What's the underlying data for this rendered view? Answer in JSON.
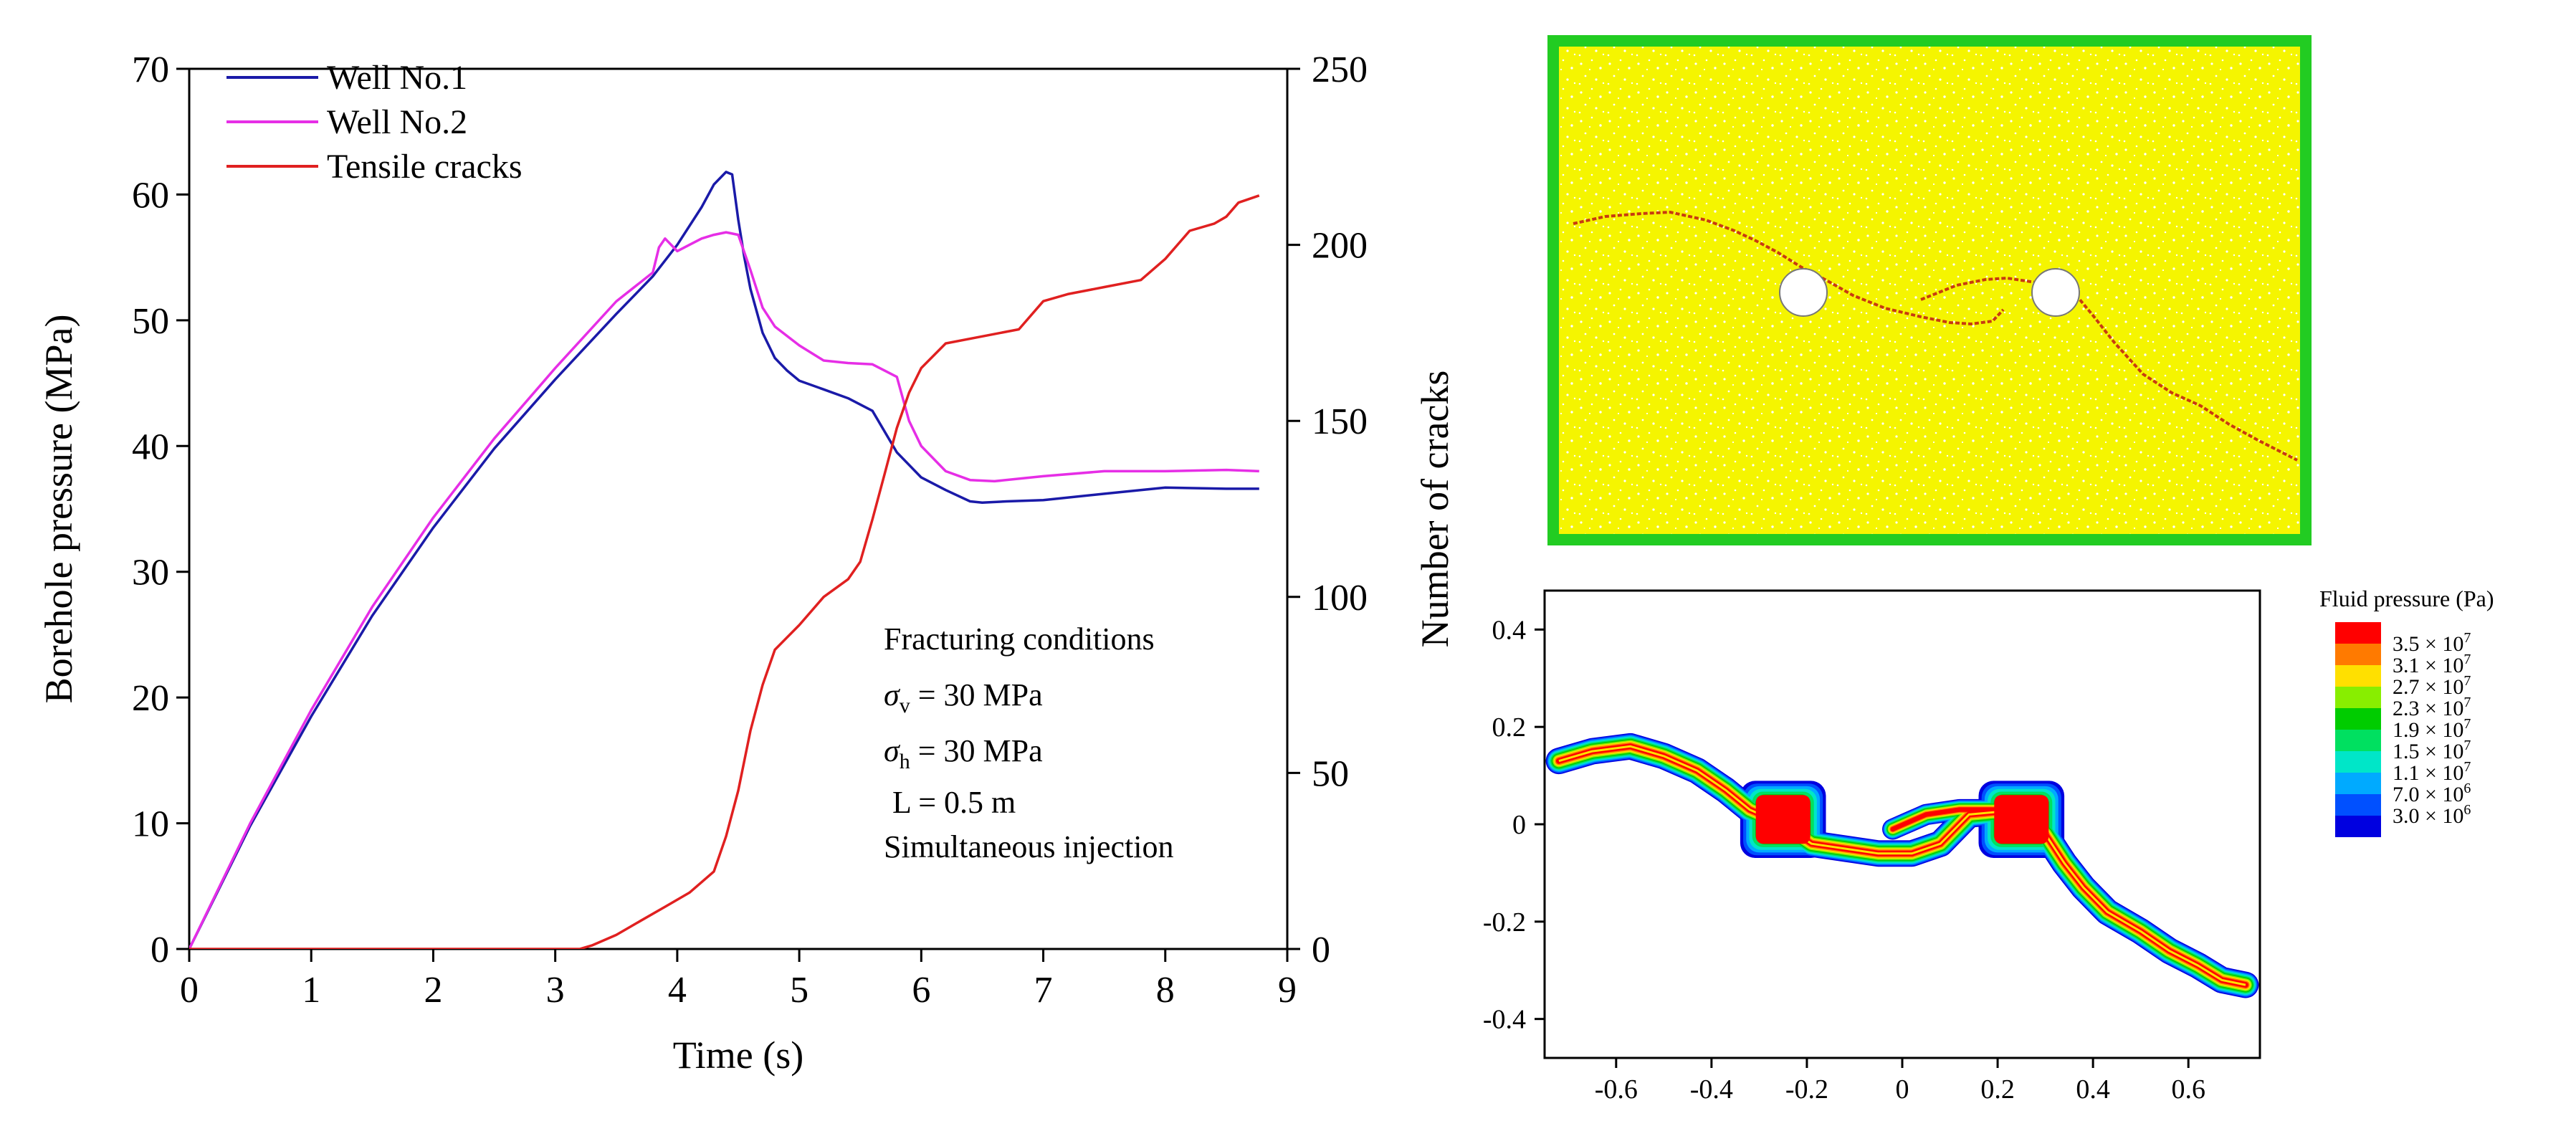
{
  "colors": {
    "well1": "#1a1aa8",
    "well2": "#e62ee6",
    "cracks": "#e02020",
    "specimen": "#f5f500",
    "boundary": "#22cc22",
    "crack_trace": "#c83a10",
    "hole": "#ffffff"
  },
  "chart_data": [
    {
      "type": "line",
      "title": "",
      "xlabel": "Time (s)",
      "ylabel": "Borehole pressure (MPa)",
      "y2label": "Number of cracks",
      "xlim": [
        0,
        9
      ],
      "ylim": [
        0,
        70
      ],
      "y2lim": [
        0,
        250
      ],
      "xticks": [
        "0",
        "1",
        "2",
        "3",
        "4",
        "5",
        "6",
        "7",
        "8",
        "9"
      ],
      "yticks": [
        "0",
        "10",
        "20",
        "30",
        "40",
        "50",
        "60",
        "70"
      ],
      "y2ticks": [
        "0",
        "50",
        "100",
        "150",
        "200",
        "250"
      ],
      "legend_position": "top-left",
      "series": [
        {
          "name": "Well No.1",
          "axis": "left",
          "color_key": "well1",
          "points": [
            [
              0,
              0
            ],
            [
              0.5,
              9.8
            ],
            [
              1,
              18.5
            ],
            [
              1.5,
              26.5
            ],
            [
              2,
              33.5
            ],
            [
              2.5,
              39.8
            ],
            [
              3,
              45.3
            ],
            [
              3.5,
              50.5
            ],
            [
              3.8,
              53.5
            ],
            [
              4.0,
              56.0
            ],
            [
              4.2,
              59.0
            ],
            [
              4.3,
              60.8
            ],
            [
              4.4,
              61.8
            ],
            [
              4.45,
              61.6
            ],
            [
              4.5,
              58.0
            ],
            [
              4.55,
              55.0
            ],
            [
              4.6,
              52.5
            ],
            [
              4.7,
              49.0
            ],
            [
              4.8,
              47.0
            ],
            [
              4.9,
              46.0
            ],
            [
              5.0,
              45.2
            ],
            [
              5.2,
              44.5
            ],
            [
              5.4,
              43.8
            ],
            [
              5.6,
              42.8
            ],
            [
              5.8,
              39.5
            ],
            [
              6.0,
              37.5
            ],
            [
              6.2,
              36.5
            ],
            [
              6.4,
              35.6
            ],
            [
              6.5,
              35.5
            ],
            [
              6.7,
              35.6
            ],
            [
              7.0,
              35.7
            ],
            [
              7.5,
              36.2
            ],
            [
              8.0,
              36.7
            ],
            [
              8.5,
              36.6
            ],
            [
              8.77,
              36.6
            ]
          ]
        },
        {
          "name": "Well No.2",
          "axis": "left",
          "color_key": "well2",
          "points": [
            [
              0,
              0
            ],
            [
              0.5,
              10.0
            ],
            [
              1,
              19.0
            ],
            [
              1.5,
              27.2
            ],
            [
              2,
              34.3
            ],
            [
              2.5,
              40.6
            ],
            [
              3,
              46.2
            ],
            [
              3.5,
              51.5
            ],
            [
              3.8,
              53.8
            ],
            [
              3.85,
              55.8
            ],
            [
              3.9,
              56.5
            ],
            [
              4.0,
              55.5
            ],
            [
              4.1,
              56.0
            ],
            [
              4.2,
              56.5
            ],
            [
              4.3,
              56.8
            ],
            [
              4.4,
              57.0
            ],
            [
              4.5,
              56.8
            ],
            [
              4.6,
              54.0
            ],
            [
              4.7,
              51.0
            ],
            [
              4.8,
              49.5
            ],
            [
              5.0,
              48.0
            ],
            [
              5.2,
              46.8
            ],
            [
              5.4,
              46.6
            ],
            [
              5.6,
              46.5
            ],
            [
              5.8,
              45.5
            ],
            [
              5.9,
              42.0
            ],
            [
              6.0,
              40.0
            ],
            [
              6.2,
              38.0
            ],
            [
              6.4,
              37.3
            ],
            [
              6.6,
              37.2
            ],
            [
              7.0,
              37.6
            ],
            [
              7.5,
              38.0
            ],
            [
              8.0,
              38.0
            ],
            [
              8.5,
              38.1
            ],
            [
              8.77,
              38.0
            ]
          ]
        },
        {
          "name": "Tensile cracks",
          "axis": "right",
          "color_key": "cracks",
          "points": [
            [
              0,
              0
            ],
            [
              3.2,
              0
            ],
            [
              3.3,
              1
            ],
            [
              3.5,
              4
            ],
            [
              3.7,
              8
            ],
            [
              3.9,
              12
            ],
            [
              4.1,
              16
            ],
            [
              4.3,
              22
            ],
            [
              4.4,
              32
            ],
            [
              4.5,
              45
            ],
            [
              4.6,
              62
            ],
            [
              4.7,
              75
            ],
            [
              4.8,
              85
            ],
            [
              5.0,
              92
            ],
            [
              5.2,
              100
            ],
            [
              5.4,
              105
            ],
            [
              5.5,
              110
            ],
            [
              5.6,
              122
            ],
            [
              5.7,
              135
            ],
            [
              5.8,
              148
            ],
            [
              5.9,
              158
            ],
            [
              6.0,
              165
            ],
            [
              6.2,
              172
            ],
            [
              6.5,
              174
            ],
            [
              6.8,
              176
            ],
            [
              7.0,
              184
            ],
            [
              7.2,
              186
            ],
            [
              7.5,
              188
            ],
            [
              7.8,
              190
            ],
            [
              8.0,
              196
            ],
            [
              8.2,
              204
            ],
            [
              8.4,
              206
            ],
            [
              8.5,
              208
            ],
            [
              8.6,
              212
            ],
            [
              8.77,
              214
            ]
          ]
        }
      ],
      "annotations": {
        "title": "Fracturing conditions",
        "sigma_v": "σv = 30 MPa",
        "sigma_v_sym": "σ",
        "sigma_v_sub": "v",
        "sigma_v_rest": " = 30 MPa",
        "sigma_h": "σh = 30 MPa",
        "sigma_h_sym": "σ",
        "sigma_h_sub": "h",
        "sigma_h_rest": " = 30 MPa",
        "length": "L = 0.5 m",
        "injection": "Simultaneous injection"
      }
    },
    {
      "type": "heatmap",
      "title": "",
      "xlim": [
        -0.75,
        0.75
      ],
      "ylim": [
        -0.48,
        0.48
      ],
      "xticks": [
        "-0.6",
        "-0.4",
        "-0.2",
        "0",
        "0.2",
        "0.4",
        "0.6"
      ],
      "yticks": [
        "-0.4",
        "-0.2",
        "0",
        "0.2",
        "0.4"
      ],
      "colorbar_title": "Fluid pressure (Pa)",
      "colorbar_levels": [
        {
          "label": "3.5 × 10",
          "exp": "7",
          "color": "#ff0000"
        },
        {
          "label": "3.1 × 10",
          "exp": "7",
          "color": "#ff7a00"
        },
        {
          "label": "2.7 × 10",
          "exp": "7",
          "color": "#ffe000"
        },
        {
          "label": "2.3 × 10",
          "exp": "7",
          "color": "#88ee00"
        },
        {
          "label": "1.9 × 10",
          "exp": "7",
          "color": "#00cc00"
        },
        {
          "label": "1.5 × 10",
          "exp": "7",
          "color": "#00e060"
        },
        {
          "label": "1.1 × 10",
          "exp": "7",
          "color": "#00e6c8"
        },
        {
          "label": "7.0 × 10",
          "exp": "6",
          "color": "#00aaff"
        },
        {
          "label": "3.0 × 10",
          "exp": "6",
          "color": "#0050ff"
        },
        {
          "label": "",
          "exp": "",
          "color": "#0000e0"
        }
      ],
      "holes": [
        [
          -0.25,
          0.01
        ],
        [
          0.25,
          0.01
        ]
      ],
      "fracture_path": [
        [
          -0.72,
          0.13
        ],
        [
          -0.65,
          0.15
        ],
        [
          -0.57,
          0.16
        ],
        [
          -0.5,
          0.14
        ],
        [
          -0.43,
          0.11
        ],
        [
          -0.37,
          0.07
        ],
        [
          -0.32,
          0.03
        ],
        [
          -0.25,
          0.0
        ],
        [
          -0.19,
          -0.04
        ],
        [
          -0.12,
          -0.05
        ],
        [
          -0.05,
          -0.06
        ],
        [
          0.02,
          -0.06
        ],
        [
          0.08,
          -0.04
        ],
        [
          0.12,
          0.0
        ],
        [
          0.14,
          0.02
        ],
        [
          0.25,
          0.03
        ],
        [
          0.3,
          -0.02
        ],
        [
          0.34,
          -0.08
        ],
        [
          0.38,
          -0.13
        ],
        [
          0.43,
          -0.18
        ],
        [
          0.5,
          -0.22
        ],
        [
          0.56,
          -0.26
        ],
        [
          0.62,
          -0.29
        ],
        [
          0.67,
          -0.32
        ],
        [
          0.72,
          -0.33
        ]
      ],
      "fracture_branch": [
        [
          -0.02,
          -0.01
        ],
        [
          0.05,
          0.02
        ],
        [
          0.12,
          0.03
        ],
        [
          0.2,
          0.03
        ],
        [
          0.25,
          0.02
        ]
      ]
    }
  ]
}
